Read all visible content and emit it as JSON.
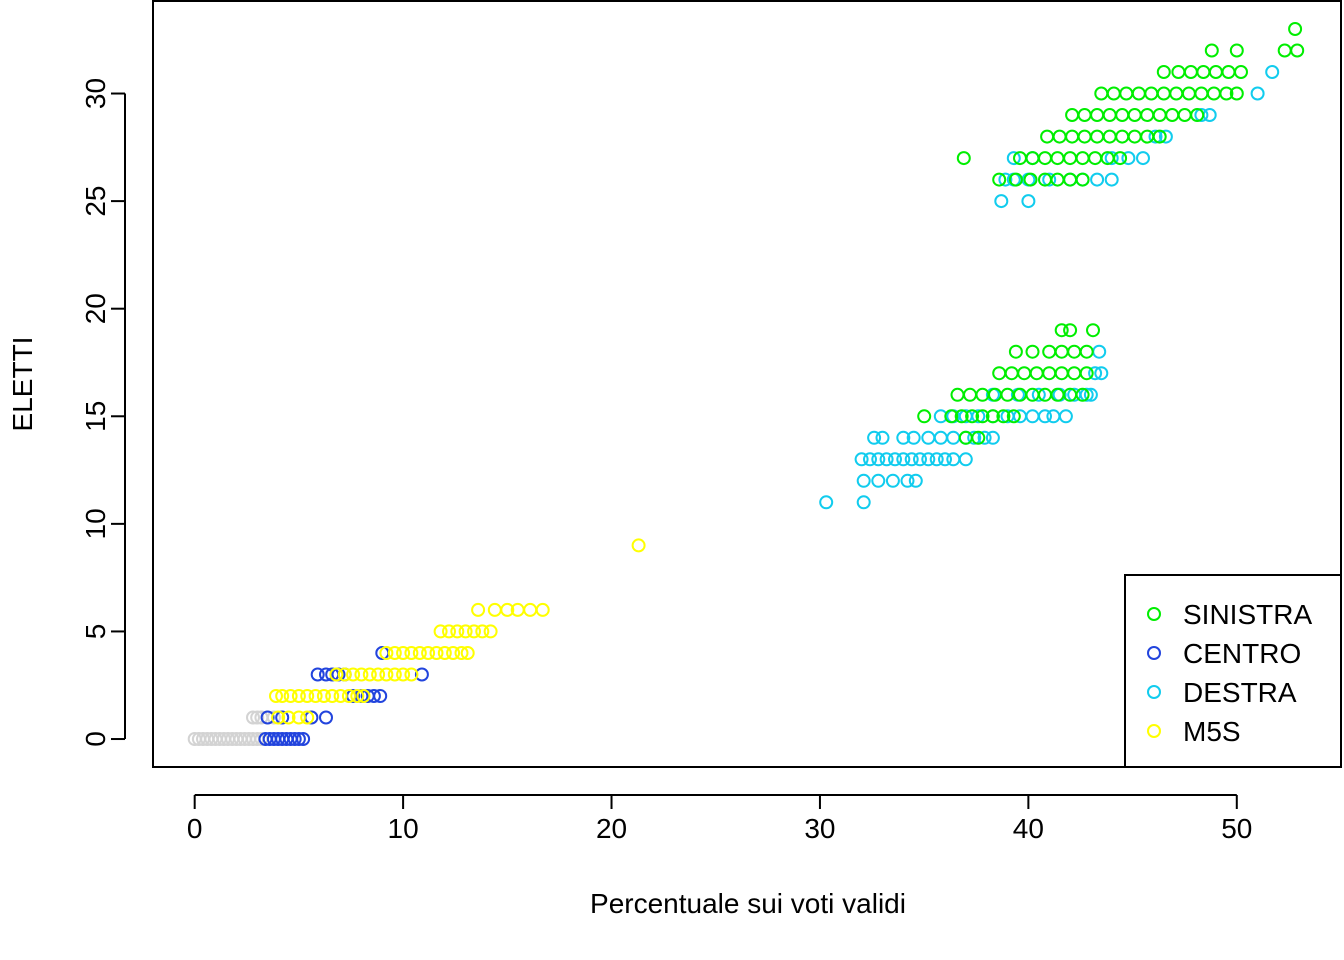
{
  "chart_data": {
    "type": "scatter",
    "xlabel": "Percentuale sui voti validi",
    "ylabel": "ELETTI",
    "xlim": [
      -2,
      55
    ],
    "ylim": [
      -1.3,
      34.3
    ],
    "x_ticks": [
      0,
      10,
      20,
      30,
      40,
      50
    ],
    "y_ticks": [
      0,
      5,
      10,
      15,
      20,
      25,
      30
    ],
    "x_tick_labels": [
      "0",
      "10",
      "20",
      "30",
      "40",
      "50"
    ],
    "y_tick_labels": [
      "0",
      "5",
      "10",
      "15",
      "20",
      "25",
      "30"
    ],
    "grid": false,
    "legend_position": "bottom-right",
    "colors": {
      "SINISTRA": "#00ee00",
      "CENTRO": "#2244dd",
      "DESTRA": "#11ccee",
      "M5S": "#ffff00",
      "OTHER": "#d3d3d3"
    },
    "legend": [
      {
        "label": "SINISTRA",
        "color": "#00ee00"
      },
      {
        "label": "CENTRO",
        "color": "#2244dd"
      },
      {
        "label": "DESTRA",
        "color": "#11ccee"
      },
      {
        "label": "M5S",
        "color": "#ffff00"
      }
    ],
    "series": [
      {
        "color": "#d3d3d3",
        "points": [
          [
            0,
            0
          ],
          [
            0.2,
            0
          ],
          [
            0.4,
            0
          ],
          [
            0.6,
            0
          ],
          [
            0.8,
            0
          ],
          [
            1.0,
            0
          ],
          [
            1.2,
            0
          ],
          [
            1.4,
            0
          ],
          [
            1.6,
            0
          ],
          [
            1.8,
            0
          ],
          [
            2.0,
            0
          ],
          [
            2.2,
            0
          ],
          [
            2.4,
            0
          ],
          [
            2.6,
            0
          ],
          [
            2.8,
            0
          ],
          [
            3.0,
            0
          ],
          [
            3.2,
            0
          ],
          [
            2.8,
            1
          ],
          [
            3.0,
            1
          ],
          [
            3.2,
            1
          ],
          [
            3.5,
            1
          ],
          [
            3.8,
            1
          ]
        ]
      },
      {
        "name": "CENTRO",
        "color": "#2244dd",
        "points": [
          [
            3.4,
            0
          ],
          [
            3.6,
            0
          ],
          [
            3.8,
            0
          ],
          [
            4.0,
            0
          ],
          [
            4.2,
            0
          ],
          [
            4.4,
            0
          ],
          [
            4.6,
            0
          ],
          [
            4.8,
            0
          ],
          [
            5.0,
            0
          ],
          [
            5.2,
            0
          ],
          [
            3.5,
            1
          ],
          [
            4.2,
            1
          ],
          [
            5.6,
            1
          ],
          [
            6.3,
            1
          ],
          [
            7.6,
            2
          ],
          [
            8.0,
            2
          ],
          [
            8.3,
            2
          ],
          [
            8.6,
            2
          ],
          [
            8.9,
            2
          ],
          [
            5.9,
            3
          ],
          [
            6.3,
            3
          ],
          [
            6.6,
            3
          ],
          [
            6.9,
            3
          ],
          [
            7.2,
            3
          ],
          [
            10.9,
            3
          ],
          [
            9.0,
            4
          ]
        ]
      },
      {
        "name": "M5S",
        "color": "#ffff00",
        "points": [
          [
            4.0,
            1
          ],
          [
            4.5,
            1
          ],
          [
            5.0,
            1
          ],
          [
            5.4,
            1
          ],
          [
            3.9,
            2
          ],
          [
            4.2,
            2
          ],
          [
            4.6,
            2
          ],
          [
            5.0,
            2
          ],
          [
            5.4,
            2
          ],
          [
            5.8,
            2
          ],
          [
            6.2,
            2
          ],
          [
            6.6,
            2
          ],
          [
            7.0,
            2
          ],
          [
            7.4,
            2
          ],
          [
            7.8,
            2
          ],
          [
            8.1,
            2
          ],
          [
            6.8,
            3
          ],
          [
            7.2,
            3
          ],
          [
            7.6,
            3
          ],
          [
            8.0,
            3
          ],
          [
            8.4,
            3
          ],
          [
            8.8,
            3
          ],
          [
            9.2,
            3
          ],
          [
            9.6,
            3
          ],
          [
            10.0,
            3
          ],
          [
            10.4,
            3
          ],
          [
            9.2,
            4
          ],
          [
            9.6,
            4
          ],
          [
            10.0,
            4
          ],
          [
            10.4,
            4
          ],
          [
            10.8,
            4
          ],
          [
            11.2,
            4
          ],
          [
            11.6,
            4
          ],
          [
            12.0,
            4
          ],
          [
            12.4,
            4
          ],
          [
            12.8,
            4
          ],
          [
            13.1,
            4
          ],
          [
            11.8,
            5
          ],
          [
            12.2,
            5
          ],
          [
            12.6,
            5
          ],
          [
            13.0,
            5
          ],
          [
            13.4,
            5
          ],
          [
            13.8,
            5
          ],
          [
            14.2,
            5
          ],
          [
            13.6,
            6
          ],
          [
            14.4,
            6
          ],
          [
            15.0,
            6
          ],
          [
            15.5,
            6
          ],
          [
            16.1,
            6
          ],
          [
            16.7,
            6
          ],
          [
            21.3,
            9
          ]
        ]
      },
      {
        "name": "DESTRA",
        "color": "#11ccee",
        "points": [
          [
            30.3,
            11
          ],
          [
            32.1,
            11
          ],
          [
            32.1,
            12
          ],
          [
            32.8,
            12
          ],
          [
            33.5,
            12
          ],
          [
            34.2,
            12
          ],
          [
            34.6,
            12
          ],
          [
            32.0,
            13
          ],
          [
            32.4,
            13
          ],
          [
            32.8,
            13
          ],
          [
            33.2,
            13
          ],
          [
            33.6,
            13
          ],
          [
            34.0,
            13
          ],
          [
            34.4,
            13
          ],
          [
            34.8,
            13
          ],
          [
            35.2,
            13
          ],
          [
            35.6,
            13
          ],
          [
            36.0,
            13
          ],
          [
            36.4,
            13
          ],
          [
            37.0,
            13
          ],
          [
            32.6,
            14
          ],
          [
            33.0,
            14
          ],
          [
            34.0,
            14
          ],
          [
            34.5,
            14
          ],
          [
            35.2,
            14
          ],
          [
            35.8,
            14
          ],
          [
            36.4,
            14
          ],
          [
            37.0,
            14
          ],
          [
            37.4,
            14
          ],
          [
            37.9,
            14
          ],
          [
            38.3,
            14
          ],
          [
            35.8,
            15
          ],
          [
            36.4,
            15
          ],
          [
            37.0,
            15
          ],
          [
            37.6,
            15
          ],
          [
            38.3,
            15
          ],
          [
            39.0,
            15
          ],
          [
            39.6,
            15
          ],
          [
            40.2,
            15
          ],
          [
            40.8,
            15
          ],
          [
            41.2,
            15
          ],
          [
            41.8,
            15
          ],
          [
            38.3,
            16
          ],
          [
            39.5,
            16
          ],
          [
            40.5,
            16
          ],
          [
            41.5,
            16
          ],
          [
            42.2,
            16
          ],
          [
            42.8,
            16
          ],
          [
            43.0,
            16
          ],
          [
            43.2,
            17
          ],
          [
            43.5,
            17
          ],
          [
            43.4,
            18
          ],
          [
            38.7,
            25
          ],
          [
            40.0,
            25
          ],
          [
            38.9,
            26
          ],
          [
            39.3,
            26
          ],
          [
            40.0,
            26
          ],
          [
            41.0,
            26
          ],
          [
            42.0,
            26
          ],
          [
            42.6,
            26
          ],
          [
            43.3,
            26
          ],
          [
            44.0,
            26
          ],
          [
            39.3,
            27
          ],
          [
            40.2,
            27
          ],
          [
            44.0,
            27
          ],
          [
            44.8,
            27
          ],
          [
            45.5,
            27
          ],
          [
            46.1,
            28
          ],
          [
            46.6,
            28
          ],
          [
            48.3,
            29
          ],
          [
            48.7,
            29
          ],
          [
            51.0,
            30
          ],
          [
            51.7,
            31
          ]
        ]
      },
      {
        "name": "SINISTRA",
        "color": "#00ee00",
        "points": [
          [
            37.0,
            14
          ],
          [
            37.6,
            14
          ],
          [
            35.0,
            15
          ],
          [
            36.3,
            15
          ],
          [
            36.8,
            15
          ],
          [
            37.3,
            15
          ],
          [
            37.8,
            15
          ],
          [
            38.3,
            15
          ],
          [
            38.8,
            15
          ],
          [
            39.3,
            15
          ],
          [
            36.6,
            16
          ],
          [
            37.2,
            16
          ],
          [
            37.8,
            16
          ],
          [
            38.4,
            16
          ],
          [
            39.0,
            16
          ],
          [
            39.6,
            16
          ],
          [
            40.2,
            16
          ],
          [
            40.8,
            16
          ],
          [
            41.4,
            16
          ],
          [
            42.0,
            16
          ],
          [
            42.6,
            16
          ],
          [
            38.6,
            17
          ],
          [
            39.2,
            17
          ],
          [
            39.8,
            17
          ],
          [
            40.4,
            17
          ],
          [
            41.0,
            17
          ],
          [
            41.6,
            17
          ],
          [
            42.2,
            17
          ],
          [
            42.8,
            17
          ],
          [
            39.4,
            18
          ],
          [
            40.2,
            18
          ],
          [
            41.0,
            18
          ],
          [
            41.6,
            18
          ],
          [
            42.2,
            18
          ],
          [
            42.8,
            18
          ],
          [
            41.6,
            19
          ],
          [
            42.0,
            19
          ],
          [
            43.1,
            19
          ],
          [
            36.9,
            27
          ],
          [
            38.6,
            26
          ],
          [
            39.4,
            26
          ],
          [
            40.1,
            26
          ],
          [
            40.8,
            26
          ],
          [
            41.4,
            26
          ],
          [
            42.0,
            26
          ],
          [
            42.6,
            26
          ],
          [
            39.6,
            27
          ],
          [
            40.2,
            27
          ],
          [
            40.8,
            27
          ],
          [
            41.4,
            27
          ],
          [
            42.0,
            27
          ],
          [
            42.6,
            27
          ],
          [
            43.2,
            27
          ],
          [
            43.8,
            27
          ],
          [
            44.4,
            27
          ],
          [
            40.9,
            28
          ],
          [
            41.5,
            28
          ],
          [
            42.1,
            28
          ],
          [
            42.7,
            28
          ],
          [
            43.3,
            28
          ],
          [
            43.9,
            28
          ],
          [
            44.5,
            28
          ],
          [
            45.1,
            28
          ],
          [
            45.7,
            28
          ],
          [
            46.3,
            28
          ],
          [
            42.1,
            29
          ],
          [
            42.7,
            29
          ],
          [
            43.3,
            29
          ],
          [
            43.9,
            29
          ],
          [
            44.5,
            29
          ],
          [
            45.1,
            29
          ],
          [
            45.7,
            29
          ],
          [
            46.3,
            29
          ],
          [
            46.9,
            29
          ],
          [
            47.5,
            29
          ],
          [
            48.1,
            29
          ],
          [
            43.5,
            30
          ],
          [
            44.1,
            30
          ],
          [
            44.7,
            30
          ],
          [
            45.3,
            30
          ],
          [
            45.9,
            30
          ],
          [
            46.5,
            30
          ],
          [
            47.1,
            30
          ],
          [
            47.7,
            30
          ],
          [
            48.3,
            30
          ],
          [
            48.9,
            30
          ],
          [
            49.5,
            30
          ],
          [
            50.0,
            30
          ],
          [
            46.5,
            31
          ],
          [
            47.2,
            31
          ],
          [
            47.8,
            31
          ],
          [
            48.4,
            31
          ],
          [
            49.0,
            31
          ],
          [
            49.6,
            31
          ],
          [
            50.2,
            31
          ],
          [
            48.8,
            32
          ],
          [
            50.0,
            32
          ],
          [
            52.3,
            32
          ],
          [
            52.9,
            32
          ],
          [
            52.8,
            33
          ]
        ]
      }
    ]
  }
}
